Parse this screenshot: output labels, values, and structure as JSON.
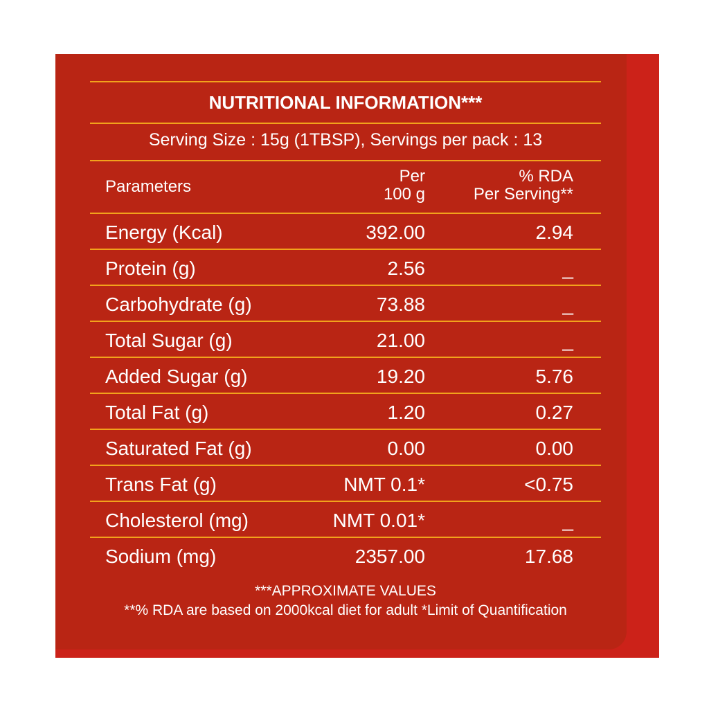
{
  "title": "NUTRITIONAL INFORMATION***",
  "serving": "Serving Size : 15g (1TBSP),  Servings per pack : 13",
  "table": {
    "header": [
      "Parameters",
      "Per\n100 g",
      "% RDA\nPer Serving**"
    ],
    "rows": [
      [
        "Energy (Kcal)",
        "392.00",
        "2.94"
      ],
      [
        "Protein (g)",
        "2.56",
        "_"
      ],
      [
        "Carbohydrate (g)",
        "73.88",
        "_"
      ],
      [
        "Total Sugar (g)",
        "21.00",
        "_"
      ],
      [
        "Added Sugar (g)",
        "19.20",
        "5.76"
      ],
      [
        "Total Fat (g)",
        "1.20",
        "0.27"
      ],
      [
        "Saturated Fat (g)",
        "0.00",
        "0.00"
      ],
      [
        "Trans Fat (g)",
        "NMT 0.1*",
        "<0.75"
      ],
      [
        "Cholesterol (mg)",
        "NMT 0.01*",
        "_"
      ],
      [
        "Sodium (mg)",
        "2357.00",
        "17.68"
      ]
    ]
  },
  "footnotes": [
    "***APPROXIMATE VALUES",
    "**% RDA are based on 2000kcal diet for adult *Limit of Quantification"
  ]
}
